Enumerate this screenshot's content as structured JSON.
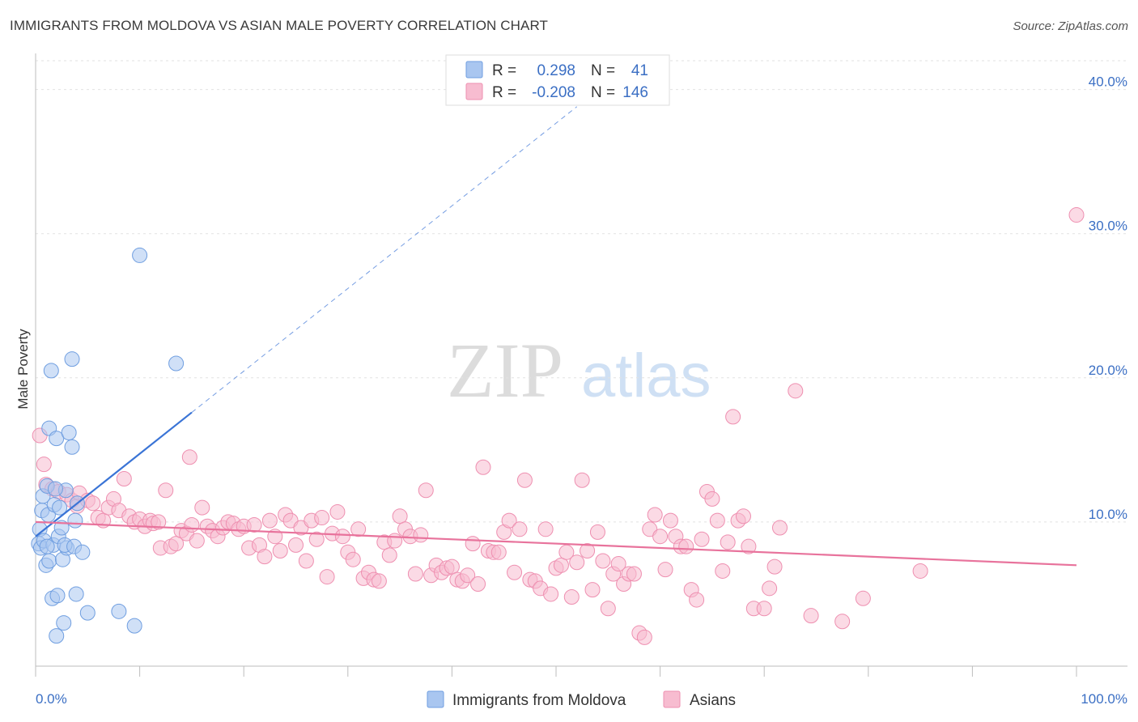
{
  "title": "IMMIGRANTS FROM MOLDOVA VS ASIAN MALE POVERTY CORRELATION CHART",
  "source": "Source: ZipAtlas.com",
  "watermark": {
    "zip": "ZIP",
    "atlas": "atlas"
  },
  "legend_top": [
    {
      "r_label": "R =",
      "r_value": "0.298",
      "n_label": "N =",
      "n_value": "41",
      "color": "#a9c6f0",
      "stroke": "#6f9ee0"
    },
    {
      "r_label": "R =",
      "r_value": "-0.208",
      "n_label": "N =",
      "n_value": "146",
      "color": "#f7bcd0",
      "stroke": "#ee8fb0"
    }
  ],
  "legend_bottom": [
    {
      "label": "Immigrants from Moldova",
      "color": "#a9c6f0",
      "stroke": "#6f9ee0"
    },
    {
      "label": "Asians",
      "color": "#f7bcd0",
      "stroke": "#ee8fb0"
    }
  ],
  "chart_data": {
    "type": "scatter",
    "xlabel": "",
    "ylabel": "Male Poverty",
    "xlim": [
      0,
      100
    ],
    "ylim": [
      0,
      42
    ],
    "x_tick_labels": [
      "0.0%",
      "100.0%"
    ],
    "y_ticks": [
      10,
      20,
      30,
      40
    ],
    "y_tick_labels": [
      "10.0%",
      "20.0%",
      "30.0%",
      "40.0%"
    ],
    "grid": true,
    "colors": {
      "blue": "#6f9ee0",
      "blue_fill": "#a9c6f0",
      "blue_line": "#3a74d6",
      "pink": "#ee8fb0",
      "pink_fill": "#f7bcd0",
      "pink_line": "#e8739c"
    },
    "series": [
      {
        "name": "Immigrants from Moldova",
        "trend": {
          "x0": 0,
          "y0": 9.0,
          "x1": 15,
          "y1": 17.6,
          "dashed_to_x": 52
        },
        "points": [
          [
            0.3,
            8.5
          ],
          [
            0.4,
            9.5
          ],
          [
            0.5,
            8.2
          ],
          [
            0.6,
            10.8
          ],
          [
            0.7,
            11.8
          ],
          [
            0.8,
            8.7
          ],
          [
            1.0,
            7.0
          ],
          [
            1.1,
            12.5
          ],
          [
            1.2,
            10.5
          ],
          [
            1.3,
            16.5
          ],
          [
            1.3,
            7.3
          ],
          [
            1.5,
            20.5
          ],
          [
            1.6,
            4.7
          ],
          [
            1.7,
            8.4
          ],
          [
            1.8,
            11.2
          ],
          [
            2.0,
            15.8
          ],
          [
            2.1,
            4.9
          ],
          [
            2.2,
            9.0
          ],
          [
            2.3,
            11.0
          ],
          [
            2.5,
            9.6
          ],
          [
            2.6,
            7.4
          ],
          [
            2.7,
            3.0
          ],
          [
            2.9,
            12.2
          ],
          [
            2.0,
            2.1
          ],
          [
            3.0,
            8.2
          ],
          [
            2.8,
            8.4
          ],
          [
            1.9,
            12.3
          ],
          [
            3.2,
            16.2
          ],
          [
            3.5,
            21.3
          ],
          [
            3.7,
            8.3
          ],
          [
            3.5,
            15.2
          ],
          [
            3.8,
            10.1
          ],
          [
            4.0,
            11.3
          ],
          [
            4.5,
            7.9
          ],
          [
            3.9,
            5.0
          ],
          [
            5.0,
            3.7
          ],
          [
            8.0,
            3.8
          ],
          [
            10.0,
            28.5
          ],
          [
            9.5,
            2.8
          ],
          [
            13.5,
            21.0
          ],
          [
            1.1,
            8.3
          ]
        ]
      },
      {
        "name": "Asians",
        "trend": {
          "x0": 0,
          "y0": 10.0,
          "x1": 100,
          "y1": 7.0
        },
        "points": [
          [
            0.4,
            16.0
          ],
          [
            0.8,
            14.0
          ],
          [
            1.0,
            12.6
          ],
          [
            1.6,
            12.3
          ],
          [
            2.2,
            12.1
          ],
          [
            3.0,
            11.9
          ],
          [
            3.5,
            11.5
          ],
          [
            4.0,
            11.1
          ],
          [
            4.2,
            12.0
          ],
          [
            5.0,
            11.5
          ],
          [
            5.5,
            11.3
          ],
          [
            6.0,
            10.3
          ],
          [
            6.5,
            10.1
          ],
          [
            7.0,
            11.0
          ],
          [
            7.5,
            11.6
          ],
          [
            8.0,
            10.8
          ],
          [
            8.5,
            13.0
          ],
          [
            9.0,
            10.4
          ],
          [
            9.5,
            10.0
          ],
          [
            10.0,
            10.2
          ],
          [
            10.5,
            9.7
          ],
          [
            11.0,
            10.1
          ],
          [
            11.3,
            9.9
          ],
          [
            11.8,
            10.0
          ],
          [
            12.0,
            8.2
          ],
          [
            12.5,
            12.2
          ],
          [
            13.0,
            8.3
          ],
          [
            13.5,
            8.5
          ],
          [
            14.0,
            9.4
          ],
          [
            14.5,
            9.2
          ],
          [
            14.8,
            14.5
          ],
          [
            15.0,
            9.8
          ],
          [
            15.5,
            8.7
          ],
          [
            16.0,
            11.0
          ],
          [
            16.5,
            9.7
          ],
          [
            17.0,
            9.4
          ],
          [
            17.5,
            9.0
          ],
          [
            18.0,
            9.6
          ],
          [
            18.5,
            10.0
          ],
          [
            19.0,
            9.9
          ],
          [
            19.5,
            9.5
          ],
          [
            20.0,
            9.7
          ],
          [
            20.5,
            8.2
          ],
          [
            21.0,
            9.8
          ],
          [
            21.5,
            8.4
          ],
          [
            22.0,
            7.6
          ],
          [
            22.5,
            10.1
          ],
          [
            23.0,
            9.0
          ],
          [
            23.5,
            8.0
          ],
          [
            24.0,
            10.5
          ],
          [
            24.5,
            10.1
          ],
          [
            25.0,
            8.4
          ],
          [
            25.5,
            9.6
          ],
          [
            26.0,
            7.3
          ],
          [
            26.5,
            10.1
          ],
          [
            27.0,
            8.8
          ],
          [
            27.5,
            10.3
          ],
          [
            28.0,
            6.2
          ],
          [
            28.5,
            9.2
          ],
          [
            29.0,
            10.7
          ],
          [
            29.5,
            9.0
          ],
          [
            30.0,
            7.9
          ],
          [
            30.5,
            7.4
          ],
          [
            31.0,
            9.5
          ],
          [
            31.5,
            6.1
          ],
          [
            32.0,
            6.5
          ],
          [
            32.5,
            6.0
          ],
          [
            33.0,
            5.9
          ],
          [
            33.5,
            8.6
          ],
          [
            34.0,
            7.7
          ],
          [
            34.5,
            8.7
          ],
          [
            35.0,
            10.4
          ],
          [
            35.5,
            9.5
          ],
          [
            36.0,
            9.0
          ],
          [
            36.5,
            6.4
          ],
          [
            37.0,
            9.1
          ],
          [
            37.5,
            12.2
          ],
          [
            38.0,
            6.3
          ],
          [
            38.5,
            7.0
          ],
          [
            39.0,
            6.5
          ],
          [
            39.5,
            6.8
          ],
          [
            40.0,
            6.9
          ],
          [
            40.5,
            6.0
          ],
          [
            41.0,
            5.9
          ],
          [
            41.5,
            6.3
          ],
          [
            42.0,
            8.5
          ],
          [
            42.5,
            5.7
          ],
          [
            43.0,
            13.8
          ],
          [
            43.5,
            8.0
          ],
          [
            44.0,
            7.9
          ],
          [
            44.5,
            7.9
          ],
          [
            45.0,
            9.3
          ],
          [
            45.5,
            10.1
          ],
          [
            46.0,
            6.5
          ],
          [
            46.5,
            9.5
          ],
          [
            47.0,
            12.9
          ],
          [
            47.5,
            6.0
          ],
          [
            48.0,
            5.9
          ],
          [
            48.5,
            5.4
          ],
          [
            49.0,
            9.5
          ],
          [
            49.5,
            5.0
          ],
          [
            50.0,
            6.8
          ],
          [
            50.5,
            7.0
          ],
          [
            51.0,
            7.9
          ],
          [
            51.5,
            4.8
          ],
          [
            52.0,
            7.2
          ],
          [
            52.5,
            12.9
          ],
          [
            53.0,
            8.0
          ],
          [
            53.5,
            5.3
          ],
          [
            54.0,
            9.3
          ],
          [
            54.5,
            7.3
          ],
          [
            55.0,
            4.0
          ],
          [
            55.5,
            6.4
          ],
          [
            56.0,
            7.1
          ],
          [
            56.5,
            5.7
          ],
          [
            57.0,
            6.4
          ],
          [
            57.5,
            6.4
          ],
          [
            58.0,
            2.3
          ],
          [
            58.5,
            2.0
          ],
          [
            59.0,
            9.5
          ],
          [
            59.5,
            10.5
          ],
          [
            60.0,
            9.0
          ],
          [
            60.5,
            6.7
          ],
          [
            61.0,
            10.1
          ],
          [
            61.5,
            9.0
          ],
          [
            62.0,
            8.3
          ],
          [
            62.5,
            8.3
          ],
          [
            63.0,
            5.3
          ],
          [
            63.5,
            4.6
          ],
          [
            64.0,
            8.8
          ],
          [
            64.5,
            12.1
          ],
          [
            65.0,
            11.6
          ],
          [
            65.5,
            10.1
          ],
          [
            66.0,
            6.6
          ],
          [
            66.5,
            8.6
          ],
          [
            67.0,
            17.3
          ],
          [
            67.5,
            10.1
          ],
          [
            68.0,
            10.4
          ],
          [
            68.5,
            8.3
          ],
          [
            69.0,
            4.0
          ],
          [
            70.0,
            4.0
          ],
          [
            70.5,
            5.4
          ],
          [
            71.0,
            6.9
          ],
          [
            71.5,
            9.6
          ],
          [
            73.0,
            19.1
          ],
          [
            74.5,
            3.5
          ],
          [
            77.5,
            3.1
          ],
          [
            79.5,
            4.7
          ],
          [
            85.0,
            6.6
          ],
          [
            100.0,
            31.3
          ]
        ]
      }
    ]
  }
}
